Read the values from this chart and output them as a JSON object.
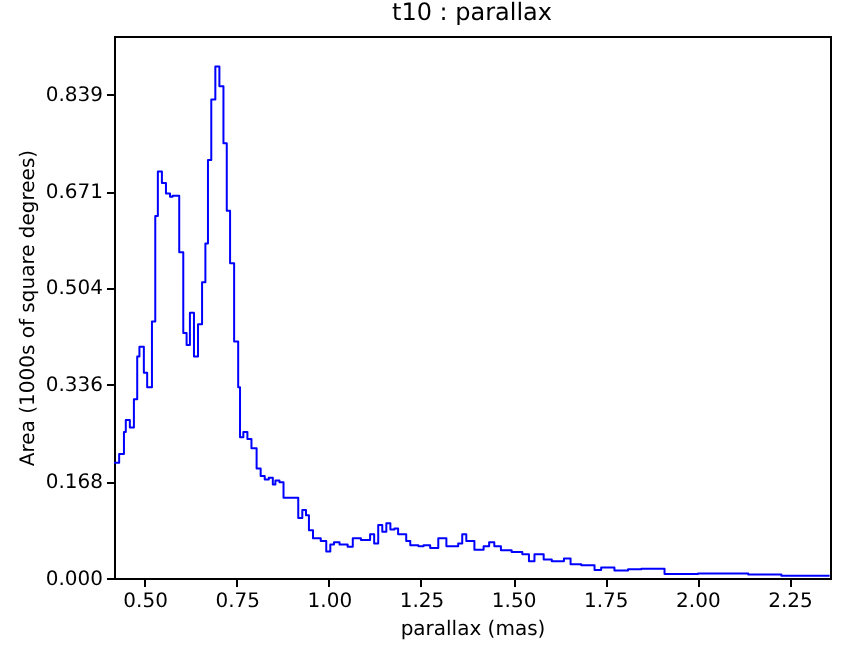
{
  "chart_data": {
    "type": "histogram",
    "title": "t10 : parallax",
    "xlabel": "parallax (mas)",
    "ylabel": "Area (1000s of square degrees)",
    "color": "#0000ff",
    "bins": [
      0.417,
      0.431,
      0.444,
      0.449,
      0.46,
      0.471,
      0.48,
      0.486,
      0.498,
      0.507,
      0.52,
      0.529,
      0.536,
      0.547,
      0.558,
      0.569,
      0.576,
      0.594,
      0.605,
      0.614,
      0.623,
      0.634,
      0.645,
      0.656,
      0.665,
      0.672,
      0.681,
      0.692,
      0.703,
      0.714,
      0.723,
      0.732,
      0.743,
      0.754,
      0.759,
      0.768,
      0.779,
      0.79,
      0.804,
      0.815,
      0.826,
      0.837,
      0.848,
      0.855,
      0.866,
      0.877,
      0.891,
      0.902,
      0.917,
      0.928,
      0.938,
      0.946,
      0.957,
      0.978,
      0.993,
      1.004,
      1.014,
      1.029,
      1.051,
      1.065,
      1.087,
      1.112,
      1.123,
      1.134,
      1.145,
      1.156,
      1.167,
      1.178,
      1.188,
      1.21,
      1.221,
      1.243,
      1.257,
      1.275,
      1.297,
      1.319,
      1.351,
      1.362,
      1.373,
      1.395,
      1.42,
      1.435,
      1.449,
      1.467,
      1.496,
      1.525,
      1.543,
      1.558,
      1.583,
      1.605,
      1.638,
      1.656,
      1.685,
      1.721,
      1.739,
      1.775,
      1.812,
      1.848,
      1.911,
      2.002,
      2.138,
      2.228,
      2.359
    ],
    "values": [
      0.2,
      0.215,
      0.253,
      0.274,
      0.261,
      0.31,
      0.384,
      0.401,
      0.356,
      0.331,
      0.445,
      0.628,
      0.705,
      0.685,
      0.667,
      0.661,
      0.663,
      0.565,
      0.425,
      0.404,
      0.46,
      0.384,
      0.44,
      0.513,
      0.58,
      0.725,
      0.83,
      0.887,
      0.853,
      0.754,
      0.637,
      0.546,
      0.41,
      0.331,
      0.244,
      0.253,
      0.241,
      0.225,
      0.19,
      0.177,
      0.171,
      0.174,
      0.162,
      0.169,
      0.166,
      0.139,
      0.139,
      0.139,
      0.104,
      0.118,
      0.109,
      0.083,
      0.069,
      0.064,
      0.046,
      0.058,
      0.062,
      0.058,
      0.054,
      0.069,
      0.066,
      0.076,
      0.06,
      0.092,
      0.08,
      0.095,
      0.084,
      0.086,
      0.076,
      0.064,
      0.057,
      0.055,
      0.057,
      0.052,
      0.069,
      0.055,
      0.06,
      0.076,
      0.064,
      0.049,
      0.055,
      0.062,
      0.055,
      0.048,
      0.045,
      0.041,
      0.029,
      0.041,
      0.032,
      0.029,
      0.034,
      0.024,
      0.022,
      0.014,
      0.018,
      0.013,
      0.015,
      0.016,
      0.007,
      0.008,
      0.006,
      0.004
    ],
    "xlim": [
      0.417,
      2.36
    ],
    "xticks": [
      {
        "value": 0.5,
        "label": "0.50"
      },
      {
        "value": 0.75,
        "label": "0.75"
      },
      {
        "value": 1.0,
        "label": "1.00"
      },
      {
        "value": 1.25,
        "label": "1.25"
      },
      {
        "value": 1.5,
        "label": "1.50"
      },
      {
        "value": 1.75,
        "label": "1.75"
      },
      {
        "value": 2.0,
        "label": "2.00"
      },
      {
        "value": 2.25,
        "label": "2.25"
      }
    ],
    "ylim": [
      0,
      0.94
    ],
    "yticks": [
      {
        "value": 0,
        "label": "0.000"
      },
      0.168,
      0.336,
      0.504,
      0.671,
      0.839
    ],
    "grid": false
  }
}
